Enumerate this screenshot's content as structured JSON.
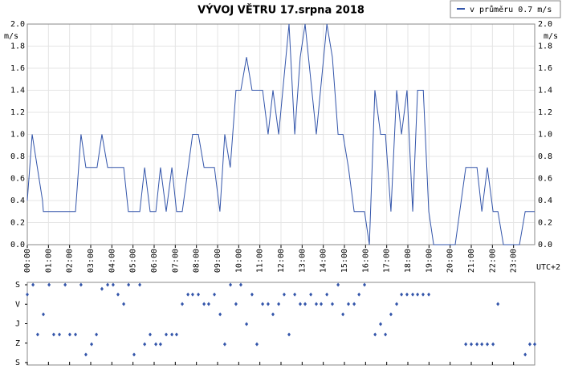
{
  "chart_data": [
    {
      "type": "line",
      "title": "VÝVOJ VĚTRU  17.srpna 2018",
      "y_unit": "m/s",
      "x_unit": "UTC+2",
      "legend": "top-right",
      "grid": true,
      "xlim": [
        0,
        24
      ],
      "xticks": [
        {
          "value": 0,
          "label": "00:00"
        },
        {
          "value": 1,
          "label": "01:00"
        },
        {
          "value": 2,
          "label": "02:00"
        },
        {
          "value": 3,
          "label": "03:00"
        },
        {
          "value": 4,
          "label": "04:00"
        },
        {
          "value": 5,
          "label": "05:00"
        },
        {
          "value": 6,
          "label": "06:00"
        },
        {
          "value": 7,
          "label": "07:00"
        },
        {
          "value": 8,
          "label": "08:00"
        },
        {
          "value": 9,
          "label": "09:00"
        },
        {
          "value": 10,
          "label": "10:00"
        },
        {
          "value": 11,
          "label": "11:00"
        },
        {
          "value": 12,
          "label": "12:00"
        },
        {
          "value": 13,
          "label": "13:00"
        },
        {
          "value": 14,
          "label": "14:00"
        },
        {
          "value": 15,
          "label": "15:00"
        },
        {
          "value": 16,
          "label": "16:00"
        },
        {
          "value": 17,
          "label": "17:00"
        },
        {
          "value": 18,
          "label": "18:00"
        },
        {
          "value": 19,
          "label": "19:00"
        },
        {
          "value": 20,
          "label": "20:00"
        },
        {
          "value": 21,
          "label": "21:00"
        },
        {
          "value": 22,
          "label": "22:00"
        },
        {
          "value": 23,
          "label": "23:00"
        }
      ],
      "ylim": [
        0,
        2
      ],
      "yticks": [
        {
          "value": 0,
          "label": "0.0"
        },
        {
          "value": 0.2,
          "label": "0.2"
        },
        {
          "value": 0.4,
          "label": "0.4"
        },
        {
          "value": 0.6,
          "label": "0.6"
        },
        {
          "value": 0.8,
          "label": "0.8"
        },
        {
          "value": 1,
          "label": "1.0"
        },
        {
          "value": 1.2,
          "label": "1.2"
        },
        {
          "value": 1.4,
          "label": "1.4"
        },
        {
          "value": 1.6,
          "label": "1.6"
        },
        {
          "value": 1.8,
          "label": "1.8"
        },
        {
          "value": 2,
          "label": "2.0"
        }
      ],
      "series": [
        {
          "name": "v průměru 0.7 m/s",
          "color": "#3355aa",
          "x": [
            0,
            0.23,
            0.72,
            0.76,
            2.28,
            2.54,
            2.77,
            3.3,
            3.53,
            3.8,
            4.56,
            4.78,
            5.32,
            5.55,
            5.81,
            6.08,
            6.3,
            6.57,
            6.84,
            7.06,
            7.33,
            7.82,
            8.09,
            8.36,
            8.85,
            9.11,
            9.34,
            9.6,
            9.87,
            10.1,
            10.37,
            10.63,
            11.13,
            11.39,
            11.62,
            11.89,
            12.38,
            12.65,
            12.91,
            13.14,
            13.67,
            14.17,
            14.43,
            14.7,
            14.93,
            15.19,
            15.46,
            15.95,
            16.18,
            16.44,
            16.71,
            16.94,
            17.2,
            17.47,
            17.7,
            17.96,
            18.23,
            18.46,
            18.73,
            18.99,
            19.22,
            20.24,
            20.74,
            21.27,
            21.5,
            21.76,
            22.03,
            22.26,
            22.52,
            23.28,
            23.55,
            24
          ],
          "values": [
            0.4,
            1.0,
            0.4,
            0.3,
            0.3,
            1.0,
            0.7,
            0.7,
            1.0,
            0.7,
            0.7,
            0.3,
            0.3,
            0.7,
            0.3,
            0.3,
            0.7,
            0.3,
            0.7,
            0.3,
            0.3,
            1.0,
            1.0,
            0.7,
            0.7,
            0.3,
            1.0,
            0.7,
            1.4,
            1.4,
            1.7,
            1.4,
            1.4,
            1.0,
            1.4,
            1.0,
            2.0,
            1.0,
            1.7,
            2.0,
            1.0,
            2.0,
            1.7,
            1.0,
            1.0,
            0.7,
            0.3,
            0.3,
            0.0,
            1.4,
            1.0,
            1.0,
            0.3,
            1.4,
            1.0,
            1.4,
            0.3,
            1.4,
            1.4,
            0.3,
            0.0,
            0.0,
            0.7,
            0.7,
            0.3,
            0.7,
            0.3,
            0.3,
            0.0,
            0.0,
            0.3,
            0.3
          ]
        }
      ]
    },
    {
      "type": "scatter",
      "xlim": [
        0,
        24
      ],
      "ylim": [
        360,
        0
      ],
      "yticks": [
        {
          "value": 0,
          "label": "S"
        },
        {
          "value": 90,
          "label": "V"
        },
        {
          "value": 180,
          "label": "J"
        },
        {
          "value": 270,
          "label": "Z"
        },
        {
          "value": 360,
          "label": "S"
        }
      ],
      "color": "#3355aa",
      "x": [
        0,
        0.27,
        0.49,
        0.76,
        1.03,
        1.25,
        1.52,
        1.79,
        2.01,
        2.28,
        2.54,
        2.77,
        3.04,
        3.27,
        3.53,
        3.8,
        4.06,
        4.29,
        4.56,
        4.79,
        5.05,
        5.32,
        5.55,
        5.81,
        6.08,
        6.3,
        6.57,
        6.84,
        7.06,
        7.33,
        7.6,
        7.82,
        8.09,
        8.36,
        8.58,
        8.85,
        9.12,
        9.34,
        9.61,
        9.87,
        10.1,
        10.37,
        10.63,
        10.86,
        11.13,
        11.39,
        11.62,
        11.89,
        12.15,
        12.38,
        12.65,
        12.91,
        13.14,
        13.41,
        13.67,
        13.9,
        14.17,
        14.43,
        14.7,
        14.93,
        15.19,
        15.46,
        15.69,
        15.95,
        16.45,
        16.71,
        16.94,
        17.2,
        17.47,
        17.7,
        17.96,
        18.23,
        18.46,
        18.72,
        18.99,
        20.74,
        21.0,
        21.27,
        21.5,
        21.76,
        22.03,
        22.26,
        23.55,
        23.77,
        24.0
      ],
      "values": [
        45,
        0,
        230,
        137,
        0,
        230,
        230,
        0,
        230,
        230,
        0,
        323,
        275,
        230,
        19,
        0,
        0,
        45,
        89,
        0,
        323,
        0,
        275,
        230,
        275,
        275,
        230,
        230,
        230,
        89,
        45,
        45,
        45,
        89,
        89,
        45,
        137,
        275,
        0,
        89,
        0,
        182,
        45,
        275,
        89,
        89,
        137,
        89,
        45,
        230,
        45,
        89,
        89,
        45,
        89,
        89,
        45,
        89,
        0,
        137,
        89,
        89,
        45,
        0,
        230,
        182,
        230,
        137,
        89,
        45,
        45,
        45,
        45,
        45,
        45,
        275,
        275,
        275,
        275,
        275,
        275,
        89,
        323,
        275,
        275
      ]
    }
  ]
}
